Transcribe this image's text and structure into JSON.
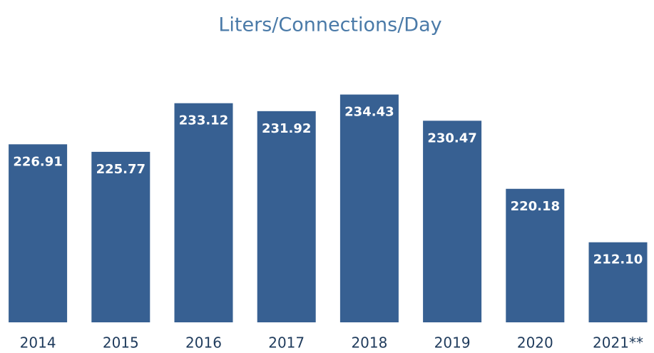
{
  "chart_data": {
    "type": "bar",
    "title": "Liters/Connections/Day",
    "categories": [
      "2014",
      "2015",
      "2016",
      "2017",
      "2018",
      "2019",
      "2020",
      "2021**"
    ],
    "values": [
      226.91,
      225.77,
      233.12,
      231.92,
      234.43,
      230.47,
      220.18,
      212.1
    ],
    "value_labels": [
      "226.91",
      "225.77",
      "233.12",
      "231.92",
      "234.43",
      "230.47",
      "220.18",
      "212.10"
    ],
    "color": "#376092",
    "ylim": [
      200,
      236
    ]
  }
}
